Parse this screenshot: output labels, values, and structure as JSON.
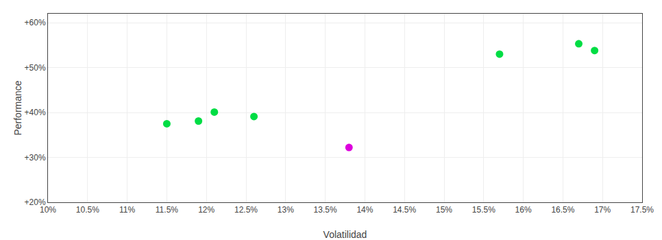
{
  "chart_data": {
    "type": "scatter",
    "xlabel": "Volatilidad",
    "ylabel": "Performance",
    "series": [
      {
        "color": "#00dd44",
        "x": [
          0.115,
          0.119,
          0.121,
          0.126,
          0.157,
          0.167,
          0.169
        ],
        "values": [
          0.375,
          0.381,
          0.401,
          0.391,
          0.53,
          0.553,
          0.538
        ]
      },
      {
        "color": "#dd00dd",
        "x": [
          0.138
        ],
        "values": [
          0.322
        ]
      }
    ],
    "xlim": [
      0.1,
      0.175
    ],
    "ylim": [
      0.2,
      0.62
    ],
    "xticks": [
      {
        "value": 0.1,
        "label": "10%"
      },
      {
        "value": 0.105,
        "label": "10.5%"
      },
      {
        "value": 0.11,
        "label": "11%"
      },
      {
        "value": 0.115,
        "label": "11.5%"
      },
      {
        "value": 0.12,
        "label": "12%"
      },
      {
        "value": 0.125,
        "label": "12.5%"
      },
      {
        "value": 0.13,
        "label": "13%"
      },
      {
        "value": 0.135,
        "label": "13.5%"
      },
      {
        "value": 0.14,
        "label": "14%"
      },
      {
        "value": 0.145,
        "label": "14.5%"
      },
      {
        "value": 0.15,
        "label": "15%"
      },
      {
        "value": 0.155,
        "label": "15.5%"
      },
      {
        "value": 0.16,
        "label": "16%"
      },
      {
        "value": 0.165,
        "label": "16.5%"
      },
      {
        "value": 0.17,
        "label": "17%"
      },
      {
        "value": 0.175,
        "label": "17.5%"
      }
    ],
    "yticks": [
      {
        "value": 0.2,
        "label": "+20%"
      },
      {
        "value": 0.3,
        "label": "+30%"
      },
      {
        "value": 0.4,
        "label": "+40%"
      },
      {
        "value": 0.5,
        "label": "+50%"
      },
      {
        "value": 0.6,
        "label": "+60%"
      }
    ],
    "grid": true
  }
}
